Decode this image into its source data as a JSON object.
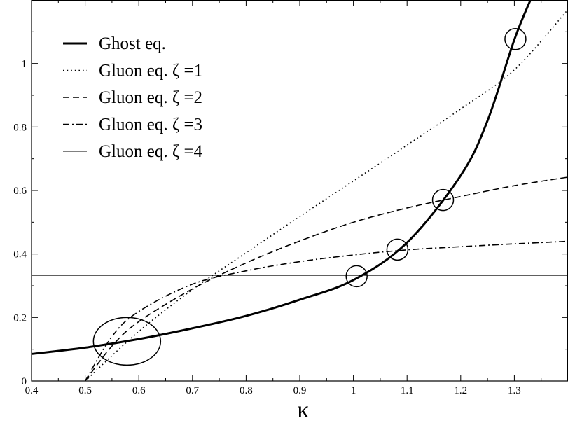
{
  "chart_data": {
    "type": "line",
    "title": "",
    "xlabel": "κ",
    "ylabel": "",
    "xlim": [
      0.4,
      1.4
    ],
    "ylim": [
      0,
      1.2
    ],
    "grid": false,
    "legend_position": "top-left",
    "xticks": [
      "0.4",
      "0.5",
      "0.6",
      "0.7",
      "0.8",
      "0.9",
      "1",
      "1.1",
      "1.2",
      "1.3"
    ],
    "xtick_values": [
      0.4,
      0.5,
      0.6,
      0.7,
      0.8,
      0.9,
      1.0,
      1.1,
      1.2,
      1.3
    ],
    "yticks": [
      "0",
      "0.2",
      "0.4",
      "0.6",
      "0.8",
      "1"
    ],
    "ytick_values": [
      0,
      0.2,
      0.4,
      0.6,
      0.8,
      1.0
    ],
    "series": [
      {
        "name": "Ghost eq.",
        "style": "solid-thick",
        "x": [
          0.4,
          0.5,
          0.6,
          0.7,
          0.8,
          0.9,
          1.0,
          1.1,
          1.2,
          1.25,
          1.3,
          1.33
        ],
        "y": [
          0.085,
          0.105,
          0.132,
          0.166,
          0.205,
          0.256,
          0.318,
          0.436,
          0.647,
          0.82,
          1.075,
          1.2
        ]
      },
      {
        "name": "Gluon eq. ζ =1",
        "style": "dotted",
        "x": [
          0.5,
          0.6,
          0.7,
          0.8,
          0.9,
          1.0,
          1.1,
          1.2,
          1.3,
          1.4
        ],
        "y": [
          0,
          0.156,
          0.288,
          0.404,
          0.518,
          0.63,
          0.743,
          0.857,
          0.98,
          1.17
        ]
      },
      {
        "name": "Gluon eq. ζ =2",
        "style": "dashed",
        "x": [
          0.5,
          0.55,
          0.6,
          0.7,
          0.8,
          0.9,
          1.0,
          1.1,
          1.2,
          1.3,
          1.4
        ],
        "y": [
          0,
          0.11,
          0.187,
          0.29,
          0.372,
          0.441,
          0.5,
          0.545,
          0.581,
          0.615,
          0.642
        ]
      },
      {
        "name": "Gluon eq. ζ =3",
        "style": "dash-dot",
        "x": [
          0.5,
          0.55,
          0.6,
          0.7,
          0.8,
          0.9,
          1.0,
          1.1,
          1.2,
          1.3,
          1.4
        ],
        "y": [
          0,
          0.14,
          0.219,
          0.305,
          0.347,
          0.376,
          0.397,
          0.413,
          0.423,
          0.432,
          0.44
        ]
      },
      {
        "name": "Gluon eq. ζ =4",
        "style": "solid-thin",
        "x": [
          0.4,
          1.4
        ],
        "y": [
          0.333,
          0.333
        ]
      }
    ],
    "annotations": [
      {
        "shape": "circle",
        "x": 1.006,
        "y": 0.33
      },
      {
        "shape": "circle",
        "x": 1.082,
        "y": 0.414
      },
      {
        "shape": "circle",
        "x": 1.167,
        "y": 0.57
      },
      {
        "shape": "circle",
        "x": 1.302,
        "y": 1.077
      },
      {
        "shape": "ellipse",
        "x": 0.578,
        "y": 0.125
      }
    ]
  }
}
